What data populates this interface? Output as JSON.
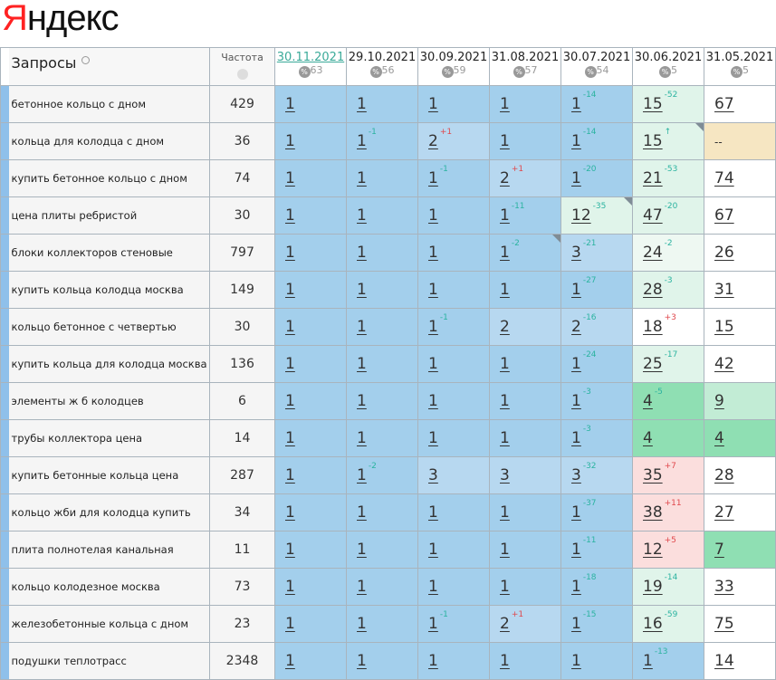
{
  "logo": "Яндекс",
  "header": {
    "queries_label": "Запросы",
    "frequency_label": "Частота",
    "pct_symbol": "%",
    "dates": [
      {
        "date": "30.11.2021",
        "pct": "63"
      },
      {
        "date": "29.10.2021",
        "pct": "56"
      },
      {
        "date": "30.09.2021",
        "pct": "59"
      },
      {
        "date": "31.08.2021",
        "pct": "57"
      },
      {
        "date": "30.07.2021",
        "pct": "54"
      },
      {
        "date": "30.06.2021",
        "pct": "5"
      },
      {
        "date": "31.05.2021",
        "pct": "5"
      }
    ]
  },
  "colors": {
    "blue": "#a3cfec",
    "lblue": "#b7d8f0",
    "pgreen": "#e0f4ea",
    "green": "#8fdfb3",
    "lgreen": "#c2ecd5",
    "pink": "#fbdedd",
    "beige": "#f6e6c2",
    "delta_up": "#2bb3a0",
    "delta_down": "#e0484c"
  },
  "rows": [
    {
      "query": "бетонное кольцо с дном",
      "freq": "429",
      "cells": [
        [
          "1",
          "",
          "blue"
        ],
        [
          "1",
          "",
          "blue"
        ],
        [
          "1",
          "",
          "blue"
        ],
        [
          "1",
          "",
          "blue"
        ],
        [
          "1",
          "-14",
          "blue"
        ],
        [
          "15",
          "-52",
          "pgreen"
        ],
        [
          "67",
          "",
          "white"
        ]
      ]
    },
    {
      "query": "кольца для колодца с дном",
      "freq": "36",
      "cells": [
        [
          "1",
          "",
          "blue"
        ],
        [
          "1",
          "-1",
          "blue"
        ],
        [
          "2",
          "+1",
          "lblue"
        ],
        [
          "1",
          "",
          "blue"
        ],
        [
          "1",
          "-14",
          "blue"
        ],
        [
          "15",
          "↑",
          "pgreen",
          "tri"
        ],
        [
          "--",
          "",
          "beige"
        ]
      ]
    },
    {
      "query": "купить бетонное кольцо с дном",
      "freq": "74",
      "cells": [
        [
          "1",
          "",
          "blue"
        ],
        [
          "1",
          "",
          "blue"
        ],
        [
          "1",
          "-1",
          "blue"
        ],
        [
          "2",
          "+1",
          "lblue"
        ],
        [
          "1",
          "-20",
          "blue"
        ],
        [
          "21",
          "-53",
          "pgreen"
        ],
        [
          "74",
          "",
          "white"
        ]
      ]
    },
    {
      "query": "цена плиты ребристой",
      "freq": "30",
      "cells": [
        [
          "1",
          "",
          "blue"
        ],
        [
          "1",
          "",
          "blue"
        ],
        [
          "1",
          "",
          "blue"
        ],
        [
          "1",
          "-11",
          "blue"
        ],
        [
          "12",
          "-35",
          "pgreen",
          "tri"
        ],
        [
          "47",
          "-20",
          "pgreen"
        ],
        [
          "67",
          "",
          "white"
        ]
      ]
    },
    {
      "query": "блоки коллекторов стеновые",
      "freq": "797",
      "cells": [
        [
          "1",
          "",
          "blue"
        ],
        [
          "1",
          "",
          "blue"
        ],
        [
          "1",
          "",
          "blue"
        ],
        [
          "1",
          "-2",
          "blue",
          "tri"
        ],
        [
          "3",
          "-21",
          "lblue"
        ],
        [
          "24",
          "-2",
          "vpgreen"
        ],
        [
          "26",
          "",
          "white"
        ]
      ]
    },
    {
      "query": "купить кольца колодца москва",
      "freq": "149",
      "cells": [
        [
          "1",
          "",
          "blue"
        ],
        [
          "1",
          "",
          "blue"
        ],
        [
          "1",
          "",
          "blue"
        ],
        [
          "1",
          "",
          "blue"
        ],
        [
          "1",
          "-27",
          "blue"
        ],
        [
          "28",
          "-3",
          "pgreen"
        ],
        [
          "31",
          "",
          "white"
        ]
      ]
    },
    {
      "query": "кольцо бетонное с четвертью",
      "freq": "30",
      "cells": [
        [
          "1",
          "",
          "blue"
        ],
        [
          "1",
          "",
          "blue"
        ],
        [
          "1",
          "-1",
          "blue"
        ],
        [
          "2",
          "",
          "lblue"
        ],
        [
          "2",
          "-16",
          "lblue"
        ],
        [
          "18",
          "+3",
          "white"
        ],
        [
          "15",
          "",
          "white"
        ]
      ]
    },
    {
      "query": "купить кольца для колодца москва",
      "freq": "136",
      "cells": [
        [
          "1",
          "",
          "blue"
        ],
        [
          "1",
          "",
          "blue"
        ],
        [
          "1",
          "",
          "blue"
        ],
        [
          "1",
          "",
          "blue"
        ],
        [
          "1",
          "-24",
          "blue"
        ],
        [
          "25",
          "-17",
          "pgreen"
        ],
        [
          "42",
          "",
          "white"
        ]
      ]
    },
    {
      "query": "элементы ж б колодцев",
      "freq": "6",
      "cells": [
        [
          "1",
          "",
          "blue"
        ],
        [
          "1",
          "",
          "blue"
        ],
        [
          "1",
          "",
          "blue"
        ],
        [
          "1",
          "",
          "blue"
        ],
        [
          "1",
          "-3",
          "blue"
        ],
        [
          "4",
          "-5",
          "green"
        ],
        [
          "9",
          "",
          "lgreen"
        ]
      ]
    },
    {
      "query": "трубы коллектора цена",
      "freq": "14",
      "cells": [
        [
          "1",
          "",
          "blue"
        ],
        [
          "1",
          "",
          "blue"
        ],
        [
          "1",
          "",
          "blue"
        ],
        [
          "1",
          "",
          "blue"
        ],
        [
          "1",
          "-3",
          "blue"
        ],
        [
          "4",
          "",
          "green"
        ],
        [
          "4",
          "",
          "green"
        ]
      ]
    },
    {
      "query": "купить бетонные кольца цена",
      "freq": "287",
      "cells": [
        [
          "1",
          "",
          "blue"
        ],
        [
          "1",
          "-2",
          "blue"
        ],
        [
          "3",
          "",
          "lblue"
        ],
        [
          "3",
          "",
          "lblue"
        ],
        [
          "3",
          "-32",
          "lblue"
        ],
        [
          "35",
          "+7",
          "pink"
        ],
        [
          "28",
          "",
          "white"
        ]
      ]
    },
    {
      "query": "кольцо жби для колодца купить",
      "freq": "34",
      "cells": [
        [
          "1",
          "",
          "blue"
        ],
        [
          "1",
          "",
          "blue"
        ],
        [
          "1",
          "",
          "blue"
        ],
        [
          "1",
          "",
          "blue"
        ],
        [
          "1",
          "-37",
          "blue"
        ],
        [
          "38",
          "+11",
          "pink"
        ],
        [
          "27",
          "",
          "white"
        ]
      ]
    },
    {
      "query": "плита полнотелая канальная",
      "freq": "11",
      "cells": [
        [
          "1",
          "",
          "blue"
        ],
        [
          "1",
          "",
          "blue"
        ],
        [
          "1",
          "",
          "blue"
        ],
        [
          "1",
          "",
          "blue"
        ],
        [
          "1",
          "-11",
          "blue"
        ],
        [
          "12",
          "+5",
          "pink"
        ],
        [
          "7",
          "",
          "green"
        ]
      ]
    },
    {
      "query": "кольцо колодезное москва",
      "freq": "73",
      "cells": [
        [
          "1",
          "",
          "blue"
        ],
        [
          "1",
          "",
          "blue"
        ],
        [
          "1",
          "",
          "blue"
        ],
        [
          "1",
          "",
          "blue"
        ],
        [
          "1",
          "-18",
          "blue"
        ],
        [
          "19",
          "-14",
          "pgreen"
        ],
        [
          "33",
          "",
          "white"
        ]
      ]
    },
    {
      "query": "железобетонные кольца с дном",
      "freq": "23",
      "cells": [
        [
          "1",
          "",
          "blue"
        ],
        [
          "1",
          "",
          "blue"
        ],
        [
          "1",
          "-1",
          "blue"
        ],
        [
          "2",
          "+1",
          "lblue"
        ],
        [
          "1",
          "-15",
          "blue"
        ],
        [
          "16",
          "-59",
          "pgreen"
        ],
        [
          "75",
          "",
          "white"
        ]
      ]
    },
    {
      "query": "подушки теплотрасс",
      "freq": "2348",
      "cells": [
        [
          "1",
          "",
          "blue"
        ],
        [
          "1",
          "",
          "blue"
        ],
        [
          "1",
          "",
          "blue"
        ],
        [
          "1",
          "",
          "blue"
        ],
        [
          "1",
          "",
          "blue"
        ],
        [
          "1",
          "-13",
          "blue"
        ],
        [
          "14",
          "",
          "white"
        ]
      ]
    }
  ]
}
